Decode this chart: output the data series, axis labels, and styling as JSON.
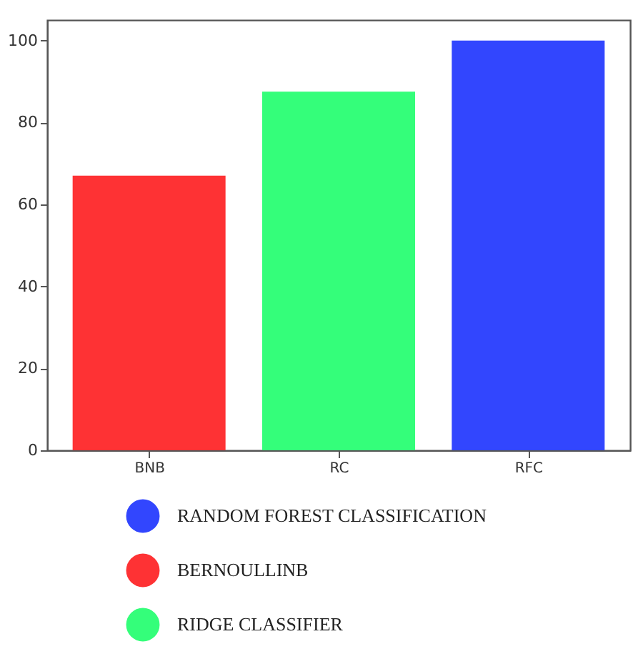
{
  "chart_data": {
    "type": "bar",
    "categories": [
      "BNB",
      "RC",
      "RFC"
    ],
    "series": [
      {
        "name": "RANDOM FOREST CLASSIFICATION",
        "color": "#3246fe",
        "values": [
          null,
          null,
          100
        ]
      },
      {
        "name": "BERNOULLINB",
        "color": "#fe3234",
        "values": [
          67,
          null,
          null
        ]
      },
      {
        "name": "RIDGE CLASSIFIER",
        "color": "#34fe7a",
        "values": [
          null,
          87.5,
          null
        ]
      }
    ],
    "ylim": [
      0,
      105
    ],
    "yticks": [
      0,
      20,
      40,
      60,
      80,
      100
    ],
    "grid": false,
    "legend": "bottom"
  }
}
